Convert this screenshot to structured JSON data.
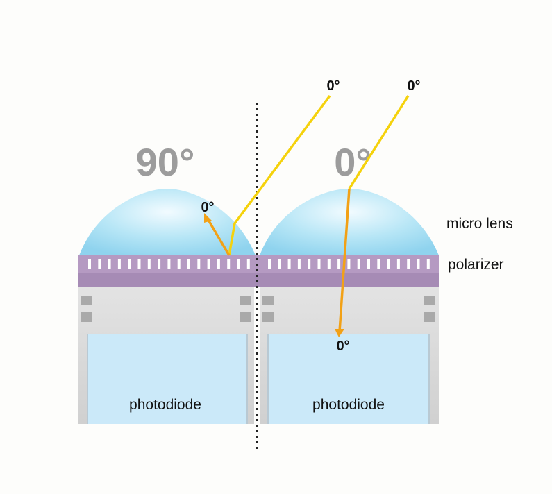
{
  "pixels": [
    {
      "polarizer_angle": "90°",
      "sensor_label": "photodiode"
    },
    {
      "polarizer_angle": "0°",
      "sensor_label": "photodiode"
    }
  ],
  "layer_labels": {
    "lens": "micro lens",
    "polarizer": "polarizer"
  },
  "rays": [
    {
      "incident_angle": "0°",
      "outcome": "reflected",
      "outcome_label": "0°"
    },
    {
      "incident_angle": "0°",
      "outcome": "transmitted",
      "outcome_label": "0°"
    }
  ],
  "colors": {
    "lens": "#a9e0f3",
    "polarizer": "#a68bb5",
    "grid_slot": "#ffffff",
    "substrate": "#d4d4d4",
    "contact": "#a9a9a9",
    "photodiode": "#cbe9f9",
    "ray_in": "#f5d20c",
    "ray_out": "#f2a116",
    "angle_big": "#9c9c9c",
    "divider": "#222222"
  }
}
